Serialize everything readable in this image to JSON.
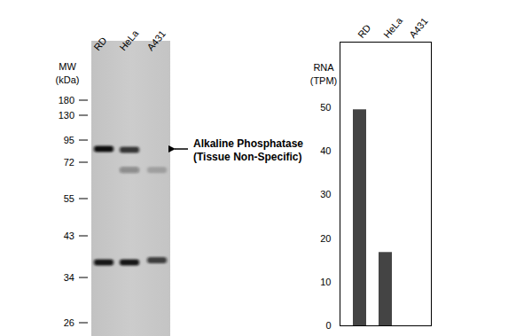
{
  "chart_data": [
    {
      "type": "western_blot",
      "y_label_lines": [
        "MW",
        "(kDa)"
      ],
      "lanes": [
        "RD",
        "HeLa",
        "A431"
      ],
      "mw_ticks": [
        180,
        130,
        95,
        72,
        55,
        43,
        34,
        26
      ],
      "bands": [
        {
          "lane": "RD",
          "kda": 85,
          "intensity": 1.0
        },
        {
          "lane": "HeLa",
          "kda": 84,
          "intensity": 0.8
        },
        {
          "lane": "HeLa",
          "kda": 68,
          "intensity": 0.35
        },
        {
          "lane": "A431",
          "kda": 68,
          "intensity": 0.2
        },
        {
          "lane": "RD",
          "kda": 37,
          "intensity": 0.95
        },
        {
          "lane": "HeLa",
          "kda": 37,
          "intensity": 0.95
        },
        {
          "lane": "A431",
          "kda": 37.5,
          "intensity": 0.75
        }
      ],
      "annotation": {
        "text_lines": [
          "Alkaline Phosphatase",
          "(Tissue Non-Specific)"
        ],
        "kda": 85
      }
    },
    {
      "type": "bar",
      "title_lines": [
        "RNA",
        "(TPM)"
      ],
      "categories": [
        "RD",
        "HeLa",
        "A431"
      ],
      "values": [
        49.5,
        16.8,
        0
      ],
      "color": "#444444",
      "ylim": [
        0,
        65
      ],
      "yticks": [
        0,
        10,
        20,
        30,
        40,
        50
      ]
    }
  ]
}
